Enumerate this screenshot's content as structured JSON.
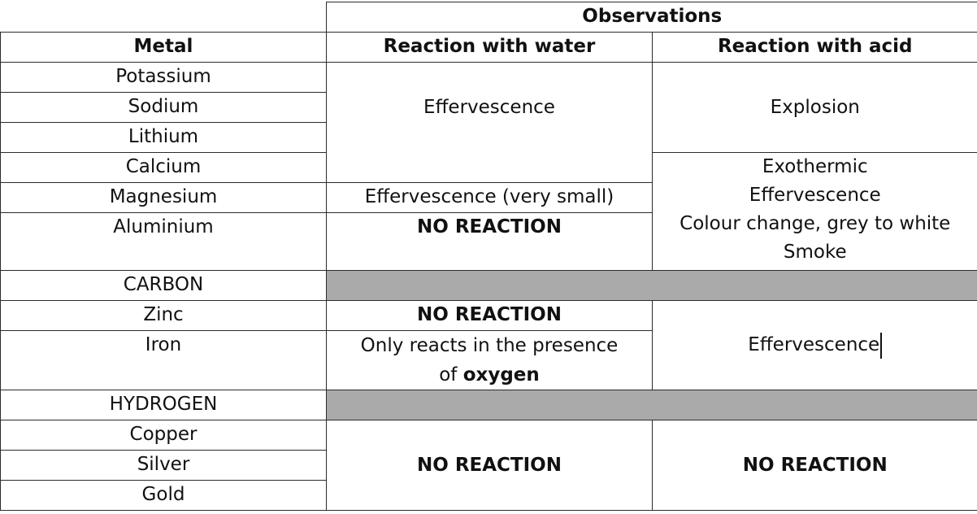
{
  "table": {
    "header_group": "Observations",
    "col_metal": "Metal",
    "col_water": "Reaction with water",
    "col_acid": "Reaction with acid",
    "metals": [
      "Potassium",
      "Sodium",
      "Lithium",
      "Calcium",
      "Magnesium",
      "Aluminium",
      "CARBON",
      "Zinc",
      "Iron",
      "HYDROGEN",
      "Copper",
      "Silver",
      "Gold"
    ],
    "water": {
      "group1": "Effervescence",
      "magnesium": "Effervescence (very small)",
      "aluminium": "NO REACTION",
      "zinc": "NO REACTION",
      "iron_part1": "Only reacts in the presence",
      "iron_part2": "of ",
      "iron_bold": "oxygen",
      "group_last": "NO REACTION"
    },
    "acid": {
      "group1": "Explosion",
      "group2_lines": [
        "Exothermic",
        "Effervescence",
        "Colour change, grey to white",
        "Smoke"
      ],
      "group3": "Effervescence",
      "group_last": "NO REACTION"
    },
    "colors": {
      "grid": "#2b2b2b",
      "separator_fill": "#aaaaaa",
      "background": "#ffffff"
    }
  }
}
